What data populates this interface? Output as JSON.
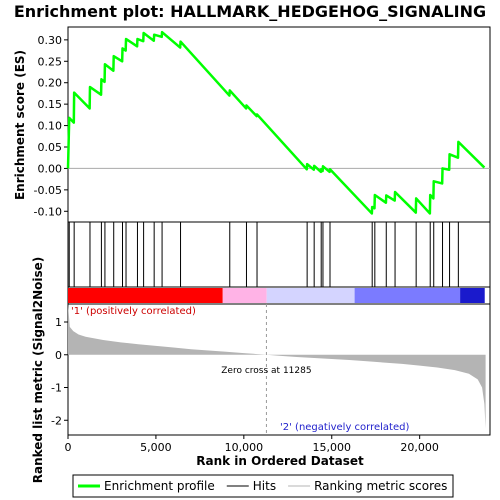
{
  "chart_data": {
    "type": "line",
    "title": "Enrichment plot: HALLMARK_HEDGEHOG_SIGNALING",
    "xlabel": "Rank in Ordered Dataset",
    "es_ylabel": "Enrichment score (ES)",
    "metric_ylabel": "Ranked list metric (Signal2Noise)",
    "x_range": [
      0,
      24000
    ],
    "x_ticks": [
      0,
      5000,
      10000,
      15000,
      20000
    ],
    "x_tick_labels": [
      "0",
      "5,000",
      "10,000",
      "15,000",
      "20,000"
    ],
    "es_range": [
      -0.125,
      0.33
    ],
    "es_ticks": [
      -0.1,
      -0.05,
      0.0,
      0.05,
      0.1,
      0.15,
      0.2,
      0.25,
      0.3
    ],
    "es_tick_labels": [
      "-0.10",
      "-0.05",
      "0.00",
      "0.05",
      "0.10",
      "0.15",
      "0.20",
      "0.25",
      "0.30"
    ],
    "metric_range": [
      -2.45,
      1.55
    ],
    "metric_ticks": [
      1,
      0,
      -1,
      -2
    ],
    "metric_tick_labels": [
      "1",
      "0",
      "-1",
      "-2"
    ],
    "dataset_size": 23800,
    "zero_cross_rank": 11285,
    "zero_cross_label": "Zero cross at 11285",
    "pos_label": "'1' (positively correlated)",
    "neg_label": "'2' (negatively correlated)",
    "hits": [
      70,
      350,
      1250,
      1900,
      2100,
      2600,
      3100,
      3300,
      3950,
      4300,
      4900,
      5350,
      6400,
      9200,
      10150,
      10750,
      13600,
      14000,
      14400,
      14500,
      14900,
      17300,
      17450,
      18100,
      18600,
      19800,
      20600,
      20800,
      21300,
      21700,
      22200
    ],
    "es_points": [
      [
        0,
        0.0
      ],
      [
        70,
        0.118
      ],
      [
        330,
        0.107
      ],
      [
        350,
        0.177
      ],
      [
        1230,
        0.14
      ],
      [
        1250,
        0.19
      ],
      [
        1880,
        0.172
      ],
      [
        1900,
        0.208
      ],
      [
        2080,
        0.202
      ],
      [
        2100,
        0.243
      ],
      [
        2580,
        0.228
      ],
      [
        2600,
        0.262
      ],
      [
        3080,
        0.25
      ],
      [
        3100,
        0.28
      ],
      [
        3280,
        0.275
      ],
      [
        3300,
        0.302
      ],
      [
        3930,
        0.285
      ],
      [
        3950,
        0.302
      ],
      [
        4280,
        0.297
      ],
      [
        4300,
        0.316
      ],
      [
        4880,
        0.298
      ],
      [
        4900,
        0.312
      ],
      [
        5330,
        0.307
      ],
      [
        5350,
        0.318
      ],
      [
        6380,
        0.282
      ],
      [
        6400,
        0.296
      ],
      [
        9180,
        0.17
      ],
      [
        9200,
        0.182
      ],
      [
        10130,
        0.14
      ],
      [
        10150,
        0.147
      ],
      [
        10730,
        0.122
      ],
      [
        10750,
        0.126
      ],
      [
        13580,
        -0.002
      ],
      [
        13600,
        0.01
      ],
      [
        13980,
        -0.003
      ],
      [
        14000,
        0.006
      ],
      [
        14380,
        -0.008
      ],
      [
        14400,
        -0.002
      ],
      [
        14480,
        -0.006
      ],
      [
        14500,
        0.005
      ],
      [
        14880,
        -0.008
      ],
      [
        14900,
        -0.002
      ],
      [
        17280,
        -0.105
      ],
      [
        17300,
        -0.09
      ],
      [
        17430,
        -0.093
      ],
      [
        17450,
        -0.062
      ],
      [
        18080,
        -0.08
      ],
      [
        18100,
        -0.063
      ],
      [
        18580,
        -0.075
      ],
      [
        18600,
        -0.055
      ],
      [
        19780,
        -0.103
      ],
      [
        19800,
        -0.07
      ],
      [
        20580,
        -0.105
      ],
      [
        20600,
        -0.062
      ],
      [
        20780,
        -0.07
      ],
      [
        20800,
        -0.03
      ],
      [
        21280,
        -0.035
      ],
      [
        21300,
        0.0
      ],
      [
        21680,
        -0.003
      ],
      [
        21700,
        0.033
      ],
      [
        22180,
        0.025
      ],
      [
        22200,
        0.062
      ],
      [
        23680,
        0.002
      ]
    ],
    "metric_points": [
      [
        0,
        1.55
      ],
      [
        100,
        0.85
      ],
      [
        300,
        0.72
      ],
      [
        600,
        0.62
      ],
      [
        1000,
        0.55
      ],
      [
        2000,
        0.45
      ],
      [
        3000,
        0.38
      ],
      [
        4000,
        0.32
      ],
      [
        5000,
        0.27
      ],
      [
        6000,
        0.22
      ],
      [
        7000,
        0.17
      ],
      [
        8000,
        0.13
      ],
      [
        9000,
        0.09
      ],
      [
        10000,
        0.05
      ],
      [
        11285,
        0.0
      ],
      [
        12000,
        -0.03
      ],
      [
        13000,
        -0.07
      ],
      [
        14000,
        -0.1
      ],
      [
        15000,
        -0.13
      ],
      [
        16000,
        -0.16
      ],
      [
        17000,
        -0.2
      ],
      [
        18000,
        -0.24
      ],
      [
        19000,
        -0.28
      ],
      [
        20000,
        -0.33
      ],
      [
        21000,
        -0.39
      ],
      [
        22000,
        -0.47
      ],
      [
        22800,
        -0.58
      ],
      [
        23300,
        -0.75
      ],
      [
        23550,
        -1.0
      ],
      [
        23680,
        -1.5
      ],
      [
        23750,
        -2.25
      ]
    ],
    "rank_bar_segments": [
      {
        "start": 0,
        "end": 8800,
        "color": "#ff0000"
      },
      {
        "start": 8800,
        "end": 11300,
        "color": "#ffb3e6"
      },
      {
        "start": 11300,
        "end": 16300,
        "color": "#d4d4ff"
      },
      {
        "start": 16300,
        "end": 22300,
        "color": "#7b7bff"
      },
      {
        "start": 22300,
        "end": 23700,
        "color": "#1a1acc"
      }
    ],
    "colors": {
      "es_line": "#00ff00",
      "hit": "#000000",
      "metric": "#b4b4b4",
      "zero_line": "#999999"
    },
    "legend": {
      "placement": "bottom",
      "items": [
        {
          "label": "Enrichment profile",
          "kind": "es"
        },
        {
          "label": "Hits",
          "kind": "hit"
        },
        {
          "label": "Ranking metric scores",
          "kind": "metric"
        }
      ]
    }
  }
}
